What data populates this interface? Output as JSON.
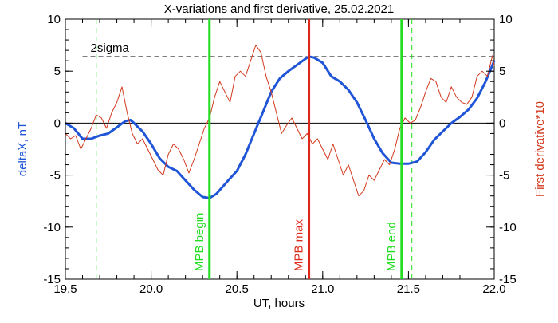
{
  "chart_data": {
    "type": "line",
    "title": "X-variations and first derivative, 25.02.2021",
    "xlabel": "UT, hours",
    "ylabel_left": "deltaX, nT",
    "ylabel_right": "First derivative*10",
    "xlim": [
      19.5,
      22.0
    ],
    "ylim_left": [
      -15,
      10
    ],
    "ylim_right": [
      -15,
      10
    ],
    "x_ticks": [
      "19.5",
      "20.0",
      "20.5",
      "21.0",
      "21.5",
      "22.0"
    ],
    "y_ticks_left": [
      "10",
      "5",
      "0",
      "-5",
      "-10",
      "-15"
    ],
    "y_ticks_right": [
      "10",
      "5",
      "0",
      "-5",
      "-10",
      "-15"
    ],
    "grid": false,
    "colors": {
      "deltaX": "#1f55d6",
      "derivative": "#d23a1e",
      "green_marker": "#22dd22",
      "red_marker": "#dd2a1a",
      "zero_line": "#000000",
      "sigma_line": "#000000"
    },
    "reference_lines": {
      "zero": 0,
      "two_sigma": {
        "label": "2sigma",
        "y": 6.4,
        "x_start": 19.6
      },
      "dashed_verticals": [
        19.68,
        21.52
      ]
    },
    "markers": [
      {
        "label": "MPB begin",
        "x": 20.34,
        "color": "green"
      },
      {
        "label": "MPB max",
        "x": 20.92,
        "color": "red"
      },
      {
        "label": "MPB end",
        "x": 21.46,
        "color": "green"
      }
    ],
    "series": [
      {
        "name": "deltaX, nT",
        "axis": "left",
        "x": [
          19.5,
          19.55,
          19.6,
          19.65,
          19.7,
          19.75,
          19.8,
          19.85,
          19.88,
          19.9,
          19.95,
          20.0,
          20.05,
          20.1,
          20.15,
          20.2,
          20.25,
          20.3,
          20.34,
          20.38,
          20.45,
          20.5,
          20.55,
          20.6,
          20.65,
          20.7,
          20.75,
          20.8,
          20.85,
          20.9,
          20.92,
          20.95,
          21.0,
          21.05,
          21.1,
          21.15,
          21.2,
          21.25,
          21.3,
          21.35,
          21.4,
          21.45,
          21.5,
          21.55,
          21.6,
          21.65,
          21.7,
          21.75,
          21.8,
          21.85,
          21.9,
          21.95,
          22.0
        ],
        "values": [
          0,
          -0.5,
          -1.5,
          -1.5,
          -1.2,
          -1.0,
          -0.4,
          0.2,
          0.3,
          0,
          -0.8,
          -2.0,
          -3.4,
          -4.2,
          -4.6,
          -5.5,
          -6.4,
          -7.1,
          -7.2,
          -6.8,
          -5.5,
          -4.6,
          -3.0,
          -1.0,
          1.0,
          3.0,
          4.3,
          5.0,
          5.6,
          6.2,
          6.4,
          6.3,
          5.8,
          4.5,
          4.0,
          3.2,
          2.0,
          0.3,
          -1.5,
          -2.9,
          -3.8,
          -3.9,
          -3.9,
          -3.7,
          -2.8,
          -1.6,
          -0.8,
          0,
          0.6,
          1.3,
          2.4,
          4.0,
          6.0
        ]
      },
      {
        "name": "First derivative*10",
        "axis": "right",
        "x": [
          19.5,
          19.53,
          19.56,
          19.59,
          19.62,
          19.65,
          19.68,
          19.71,
          19.74,
          19.77,
          19.8,
          19.83,
          19.86,
          19.89,
          19.92,
          19.95,
          19.98,
          20.01,
          20.04,
          20.07,
          20.1,
          20.13,
          20.16,
          20.19,
          20.22,
          20.25,
          20.28,
          20.31,
          20.34,
          20.37,
          20.4,
          20.43,
          20.46,
          20.49,
          20.52,
          20.55,
          20.58,
          20.61,
          20.64,
          20.67,
          20.7,
          20.73,
          20.76,
          20.79,
          20.82,
          20.85,
          20.88,
          20.91,
          20.94,
          20.97,
          21.0,
          21.03,
          21.06,
          21.09,
          21.12,
          21.15,
          21.18,
          21.21,
          21.24,
          21.27,
          21.3,
          21.33,
          21.36,
          21.39,
          21.42,
          21.45,
          21.48,
          21.51,
          21.54,
          21.57,
          21.6,
          21.63,
          21.66,
          21.69,
          21.72,
          21.75,
          21.78,
          21.81,
          21.84,
          21.87,
          21.9,
          21.93,
          21.96,
          21.99,
          22.0
        ],
        "values": [
          -1.0,
          -1.5,
          -1.2,
          -2.5,
          -1.5,
          -0.5,
          0.8,
          0.5,
          -0.5,
          1.0,
          2.0,
          3.5,
          1.0,
          -1.0,
          -2.0,
          -1.5,
          -2.5,
          -3.5,
          -4.5,
          -5.0,
          -3.0,
          -2.0,
          -2.5,
          -3.5,
          -4.8,
          -3.5,
          -2.0,
          -0.5,
          0.5,
          2.5,
          4.0,
          3.0,
          2.0,
          4.5,
          5.0,
          4.5,
          6.0,
          7.5,
          6.8,
          4.5,
          3.0,
          1.0,
          -1.0,
          -0.2,
          0.5,
          -0.5,
          -1.5,
          -1.0,
          -2.0,
          -1.5,
          -2.5,
          -3.5,
          -2.0,
          -3.5,
          -5.0,
          -4.0,
          -5.5,
          -7.0,
          -6.5,
          -5.0,
          -5.5,
          -4.5,
          -3.5,
          -4.0,
          -2.5,
          -0.5,
          0.5,
          0.0,
          0.3,
          1.5,
          3.0,
          4.3,
          4.0,
          2.5,
          2.0,
          3.5,
          2.5,
          2.0,
          1.8,
          2.5,
          4.5,
          5.0,
          4.5,
          6.5,
          5.5
        ]
      }
    ]
  }
}
